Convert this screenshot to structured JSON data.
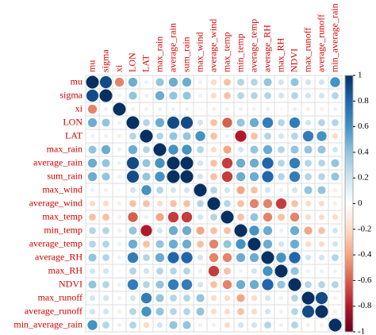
{
  "chart_data": {
    "type": "corrplot",
    "variables": [
      "mu",
      "sigma",
      "xi",
      "LON",
      "LAT",
      "max_rain",
      "average_rain",
      "sum_rain",
      "max_wind",
      "average_wind",
      "max_temp",
      "min_temp",
      "average_temp",
      "average_RH",
      "max_RH",
      "NDVI",
      "max_runoff",
      "average_runoff",
      "min_average_rain"
    ],
    "matrix": [
      [
        1,
        0.9,
        -0.5,
        0.5,
        0.1,
        0.4,
        0.5,
        0.5,
        0.1,
        -0.2,
        -0.3,
        0.3,
        0.3,
        0.4,
        0.2,
        0.4,
        0.2,
        0.2,
        0.6
      ],
      [
        0.9,
        1,
        0.1,
        0.4,
        0.1,
        0.5,
        0.4,
        0.4,
        0.1,
        -0.2,
        -0.3,
        0.3,
        0.3,
        0.3,
        0.2,
        0.3,
        0.2,
        0.2,
        0.3
      ],
      [
        -0.5,
        0.1,
        1,
        0.1,
        -0.1,
        0.1,
        0.1,
        0.1,
        0.05,
        -0.1,
        -0.1,
        0.1,
        0.1,
        0.1,
        0.05,
        0.1,
        -0.1,
        -0.1,
        0.1
      ],
      [
        0.5,
        0.4,
        0.1,
        1,
        0.3,
        0.5,
        0.9,
        0.9,
        0.2,
        -0.3,
        -0.6,
        0.4,
        0.5,
        0.7,
        0.3,
        0.7,
        0.2,
        0.3,
        0.3
      ],
      [
        0.1,
        0.1,
        -0.1,
        0.3,
        1,
        0.3,
        0.4,
        0.4,
        0.6,
        -0.3,
        0.1,
        -0.8,
        -0.3,
        0.3,
        0.2,
        0.3,
        0.7,
        0.6,
        -0.2
      ],
      [
        0.4,
        0.5,
        0.1,
        0.5,
        0.3,
        1,
        0.6,
        0.6,
        0.3,
        -0.2,
        -0.4,
        0.2,
        0.4,
        0.5,
        0.3,
        0.4,
        0.4,
        0.4,
        0.2
      ],
      [
        0.5,
        0.4,
        0.1,
        0.9,
        0.4,
        0.6,
        1,
        1,
        0.2,
        -0.3,
        -0.7,
        0.5,
        0.5,
        0.8,
        0.3,
        0.7,
        0.3,
        0.3,
        0.4
      ],
      [
        0.5,
        0.4,
        0.1,
        0.9,
        0.4,
        0.6,
        1,
        1,
        0.2,
        -0.3,
        -0.7,
        0.5,
        0.5,
        0.8,
        0.3,
        0.7,
        0.3,
        0.3,
        0.4
      ],
      [
        0.1,
        0.1,
        0.05,
        0.2,
        0.6,
        0.3,
        0.2,
        0.2,
        1,
        0.3,
        0.2,
        -0.4,
        -0.3,
        0.2,
        0.1,
        0.2,
        0.4,
        0.4,
        -0.1
      ],
      [
        -0.2,
        -0.2,
        -0.1,
        -0.3,
        -0.3,
        -0.2,
        -0.3,
        -0.3,
        0.3,
        1,
        0.3,
        -0.3,
        -0.5,
        -0.5,
        -0.7,
        -0.3,
        -0.2,
        -0.2,
        -0.1
      ],
      [
        -0.3,
        -0.3,
        -0.1,
        -0.6,
        0.1,
        -0.4,
        -0.7,
        -0.7,
        0.2,
        0.3,
        1,
        -0.3,
        0.4,
        -0.5,
        -0.3,
        -0.5,
        -0.2,
        -0.2,
        -0.2
      ],
      [
        0.3,
        0.3,
        0.1,
        0.4,
        -0.8,
        0.2,
        0.5,
        0.5,
        -0.4,
        -0.3,
        -0.3,
        1,
        0.6,
        0.5,
        0.1,
        0.5,
        -0.4,
        -0.3,
        0.2
      ],
      [
        0.3,
        0.3,
        0.1,
        0.5,
        -0.3,
        0.4,
        0.5,
        0.5,
        -0.3,
        -0.5,
        0.4,
        0.6,
        1,
        0.5,
        0.2,
        0.5,
        -0.2,
        -0.2,
        0.2
      ],
      [
        0.4,
        0.3,
        0.1,
        0.7,
        0.3,
        0.5,
        0.8,
        0.8,
        0.2,
        -0.5,
        -0.5,
        0.5,
        0.5,
        1,
        0.6,
        0.8,
        0.2,
        0.2,
        0.3
      ],
      [
        0.2,
        0.2,
        0.05,
        0.3,
        0.2,
        0.3,
        0.3,
        0.3,
        0.1,
        -0.7,
        -0.3,
        0.1,
        0.2,
        0.6,
        1,
        0.4,
        0.1,
        0.1,
        0.1
      ],
      [
        0.4,
        0.3,
        0.1,
        0.7,
        0.3,
        0.4,
        0.7,
        0.7,
        0.2,
        -0.3,
        -0.5,
        0.5,
        0.5,
        0.8,
        0.4,
        1,
        0.3,
        0.3,
        0.3
      ],
      [
        0.2,
        0.2,
        -0.1,
        0.2,
        0.7,
        0.4,
        0.3,
        0.3,
        0.4,
        -0.2,
        -0.2,
        -0.4,
        -0.2,
        0.2,
        0.1,
        0.3,
        1,
        0.9,
        -0.1
      ],
      [
        0.2,
        0.2,
        -0.1,
        0.3,
        0.6,
        0.4,
        0.3,
        0.3,
        0.4,
        -0.2,
        -0.2,
        -0.3,
        -0.2,
        0.2,
        0.1,
        0.3,
        0.9,
        1,
        -0.1
      ],
      [
        0.6,
        0.3,
        0.1,
        0.3,
        -0.2,
        0.2,
        0.4,
        0.4,
        -0.1,
        -0.1,
        -0.2,
        0.2,
        0.2,
        0.3,
        0.1,
        0.3,
        -0.1,
        -0.1,
        1
      ]
    ],
    "clim": [
      -1,
      1
    ],
    "cticks": [
      1,
      0.8,
      0.6,
      0.4,
      0.2,
      0,
      -0.2,
      -0.4,
      -0.6,
      -0.8,
      -1
    ],
    "colorscale": [
      "#67001F",
      "#B2182B",
      "#D6604D",
      "#F4A582",
      "#FDDBC7",
      "#FFFFFF",
      "#D1E5F0",
      "#92C5DE",
      "#4393C3",
      "#2166AC",
      "#053061"
    ]
  }
}
